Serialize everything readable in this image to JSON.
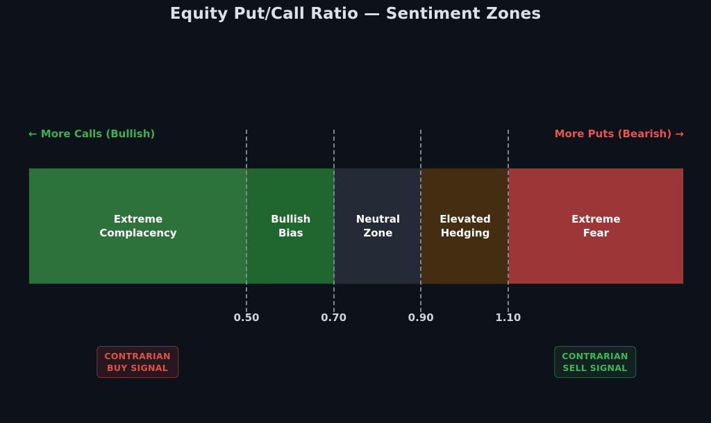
{
  "chart_data": {
    "type": "bar",
    "subtype": "horizontal-sentiment-zone-band",
    "title": "Equity Put/Call Ratio — Sentiment Zones",
    "xlabel": "",
    "ylabel": "",
    "axis": {
      "min": 0.0,
      "max": 1.5,
      "ticks": [
        {
          "value": 0.5,
          "label": "0.50"
        },
        {
          "value": 0.7,
          "label": "0.70"
        },
        {
          "value": 0.9,
          "label": "0.90"
        },
        {
          "value": 1.1,
          "label": "1.10"
        }
      ],
      "gridline_color": "#80868f",
      "tick_color": "#ced2d9"
    },
    "zones": [
      {
        "label": "Extreme\nComplacency",
        "range": [
          0.0,
          0.5
        ],
        "color": "#2c723a"
      },
      {
        "label": "Bullish\nBias",
        "range": [
          0.5,
          0.7
        ],
        "color": "#20672f"
      },
      {
        "label": "Neutral\nZone",
        "range": [
          0.7,
          0.9
        ],
        "color": "#252b36"
      },
      {
        "label": "Elevated\nHedging",
        "range": [
          0.9,
          1.1
        ],
        "color": "#452d12"
      },
      {
        "label": "Extreme\nFear",
        "range": [
          1.1,
          1.5
        ],
        "color": "#9d3737"
      }
    ],
    "direction_labels": {
      "left": {
        "text": "← More Calls (Bullish)",
        "color": "#3cb24e"
      },
      "right": {
        "text": "More Puts (Bearish) →",
        "color": "#e8564b"
      }
    },
    "signals": {
      "buy": {
        "line1": "CONTRARIAN",
        "line2": "BUY SIGNAL",
        "text_color": "#e05146",
        "bg": "rgba(232,86,75,0.12)",
        "border": "rgba(232,86,75,0.45)"
      },
      "sell": {
        "line1": "CONTRARIAN",
        "line2": "SELL SIGNAL",
        "text_color": "#3cb85a",
        "bg": "rgba(60,184,90,0.10)",
        "border": "rgba(60,184,90,0.45)"
      }
    },
    "colors": {
      "background": "#0d111a",
      "title": "#dce1e9"
    }
  }
}
